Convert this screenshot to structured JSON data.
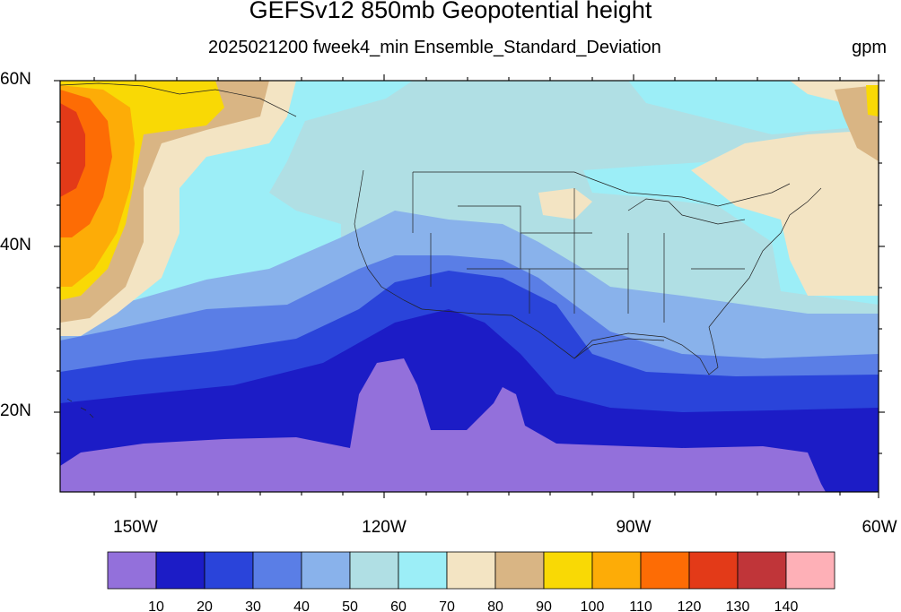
{
  "figure": {
    "title": "GEFSv12 850mb Geopotential height",
    "subtitle": "2025021200 fweek4_min Ensemble_Standard_Deviation",
    "units": "gpm"
  },
  "map": {
    "projection": "cylindrical-equidistant",
    "lon_range": [
      -160,
      -60
    ],
    "lat_range": [
      10,
      60
    ],
    "lat_ticks": [
      "60N",
      "40N",
      "20N"
    ],
    "lon_ticks": [
      "150W",
      "120W",
      "90W",
      "60W"
    ]
  },
  "colorbar": {
    "colors": [
      "#9370db",
      "#1c1cc6",
      "#2a44da",
      "#5a7ee6",
      "#89b2eb",
      "#b0dfe4",
      "#9ceef7",
      "#f3e4c3",
      "#d9b584",
      "#f9d905",
      "#fdac07",
      "#fd6c05",
      "#e33a18",
      "#c03539",
      "#feb0b7"
    ],
    "labels": [
      "10",
      "20",
      "30",
      "40",
      "50",
      "60",
      "70",
      "80",
      "90",
      "100",
      "110",
      "120",
      "130",
      "140"
    ]
  }
}
